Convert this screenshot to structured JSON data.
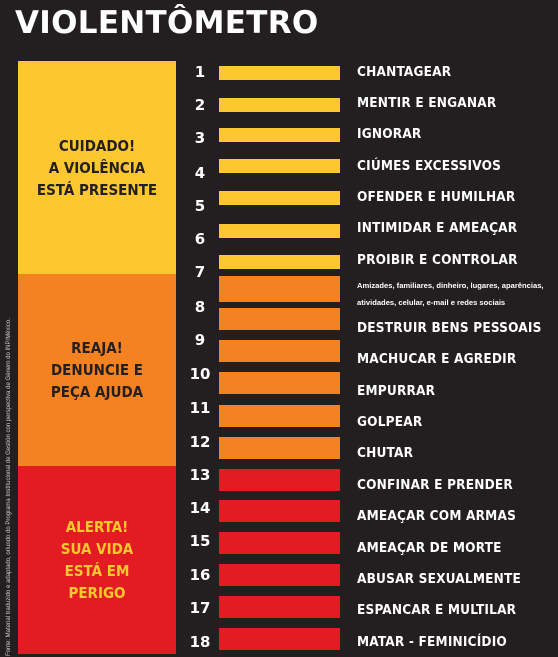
{
  "title": "VIOLENTÔMETRO",
  "zones": [
    {
      "label": "CUIDADO!\nA VIOLÊNCIA\nESTÁ PRESENTE",
      "color": "#fdc82f",
      "text_color": "#231f20"
    },
    {
      "label": "REAJA!\nDENUNCIE E\nPEÇA AJUDA",
      "color": "#f58220",
      "text_color": "#231f20"
    },
    {
      "label": "ALERTA!\nSUA VIDA\nESTÁ EM\nPERIGO",
      "color": "#e31b23",
      "text_color": "#fdc82f"
    }
  ],
  "levels": [
    {
      "number": "1",
      "label": "CHANTAGEAR",
      "zone": 0
    },
    {
      "number": "2",
      "label": "MENTIR E ENGANAR",
      "zone": 0
    },
    {
      "number": "3",
      "label": "IGNORAR",
      "zone": 0
    },
    {
      "number": "4",
      "label": "CIÚMES EXCESSIVOS",
      "zone": 0
    },
    {
      "number": "5",
      "label": "OFENDER E HUMILHAR",
      "zone": 0
    },
    {
      "number": "6",
      "label": "INTIMIDAR E AMEAÇAR",
      "zone": 0
    },
    {
      "number": "7",
      "label": "PROIBIR E CONTROLAR",
      "zone": 0
    },
    {
      "number": "8",
      "label": "",
      "zone": 1
    },
    {
      "number": "9",
      "label": "DESTRUIR BENS PESSOAIS",
      "zone": 1
    },
    {
      "number": "10",
      "label": "MACHUCAR E AGREDIR",
      "zone": 1
    },
    {
      "number": "11",
      "label": "EMPURRAR",
      "zone": 1
    },
    {
      "number": "12",
      "label": "GOLPEAR",
      "zone": 1
    },
    {
      "number": "13",
      "label": "CHUTAR",
      "zone": 1
    },
    {
      "number": "14",
      "label": "CONFINAR E PRENDER",
      "zone": 2
    },
    {
      "number": "15",
      "label": "AMEAÇAR COM ARMAS",
      "zone": 2
    },
    {
      "number": "16",
      "label": "AMEAÇAR DE MORTE",
      "zone": 2
    },
    {
      "number": "17",
      "label": "ABUSAR SEXUALMENTE",
      "zone": 2
    },
    {
      "number": "18",
      "label": "ESPANCAR E MULTILAR",
      "zone": 2
    },
    {
      "number": "",
      "label": "MATAR - FEMINICÍDIO",
      "zone": 2
    }
  ],
  "number_labels": [
    "1",
    "2",
    "3",
    "4",
    "5",
    "6",
    "7",
    "8",
    "9",
    "10",
    "11",
    "12",
    "13",
    "14",
    "15",
    "16",
    "17",
    "18"
  ],
  "item_labels": [
    "CHANTAGEAR",
    "MENTIR E ENGANAR",
    "IGNORAR",
    "CIÚMES EXCESSIVOS",
    "OFENDER E HUMILHAR",
    "INTIMIDAR E AMEAÇAR",
    "PROIBIR E CONTROLAR",
    "DESTRUIR BENS PESSOAIS",
    "MACHUCAR E AGREDIR",
    "EMPURRAR",
    "GOLPEAR",
    "CHUTAR",
    "CONFINAR E PRENDER",
    "AMEAÇAR COM ARMAS",
    "AMEAÇAR DE MORTE",
    "ABUSAR SEXUALMENTE",
    "ESPANCAR E MULTILAR",
    "MATAR - FEMINICÍDIO"
  ],
  "controlled_note": "Amizades, familiares, dinheiro, lugares, aparências,\natividades, celular, e-mail e redes sociais",
  "source": "Fonte: Material traduzido e adaptado, oriundo do Programa Institucional de Gestión con perspectiva de Género do INP/México."
}
